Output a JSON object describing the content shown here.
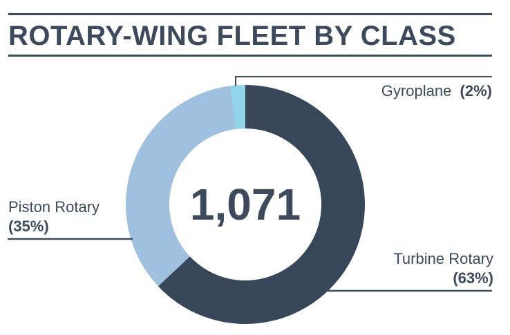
{
  "chart_data": {
    "type": "pie",
    "variant": "donut",
    "title": "ROTARY-WING FLEET BY CLASS",
    "center_label": "1,071",
    "slices": [
      {
        "label": "Turbine Rotary",
        "percent_label": "(63%)",
        "value": 63,
        "color": "#374759"
      },
      {
        "label": "Piston Rotary",
        "percent_label": "(35%)",
        "value": 35,
        "color": "#9fc0de"
      },
      {
        "label": "Gyroplane",
        "percent_label": "(2%)",
        "value": 2,
        "color": "#8fd4e8"
      }
    ],
    "legend": "none"
  }
}
